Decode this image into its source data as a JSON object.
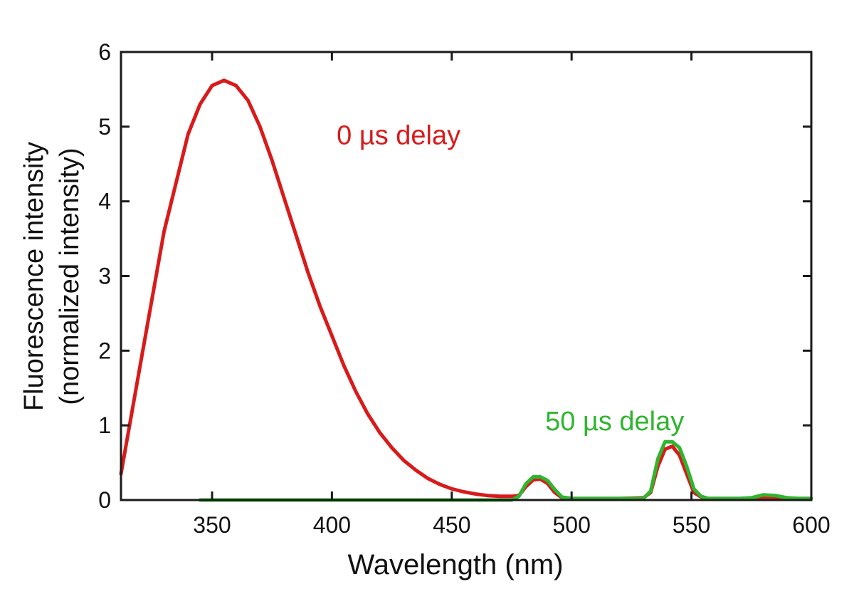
{
  "chart_data": {
    "type": "line",
    "title": "",
    "xlabel": "Wavelength (nm)",
    "ylabel_line1": "Fluorescence intensity",
    "ylabel_line2": "(normalized intensity)",
    "xlim": [
      312,
      600
    ],
    "ylim": [
      0,
      6
    ],
    "xticks": [
      350,
      400,
      450,
      500,
      550,
      600
    ],
    "yticks": [
      0,
      1,
      2,
      3,
      4,
      5,
      6
    ],
    "grid": false,
    "annotations": [
      {
        "text": "0 µs delay",
        "series": "0 µs delay",
        "x": 402,
        "y": 4.9
      },
      {
        "text": "50 µs delay",
        "series": "50 µs delay",
        "x": 489,
        "y": 1.07
      }
    ],
    "series": [
      {
        "name": "0 µs delay",
        "color": "#d91a1a",
        "x": [
          312,
          320,
          330,
          340,
          345,
          350,
          355,
          360,
          365,
          370,
          375,
          380,
          385,
          390,
          395,
          400,
          405,
          410,
          415,
          420,
          425,
          430,
          435,
          440,
          445,
          450,
          455,
          460,
          465,
          470,
          475,
          478,
          481,
          484,
          487,
          490,
          493,
          496,
          500,
          510,
          520,
          530,
          533,
          536,
          539,
          542,
          545,
          548,
          551,
          554,
          557,
          560,
          570,
          580,
          590,
          600
        ],
        "y": [
          0.35,
          1.8,
          3.6,
          4.9,
          5.3,
          5.55,
          5.62,
          5.55,
          5.35,
          5.0,
          4.55,
          4.05,
          3.55,
          3.05,
          2.6,
          2.2,
          1.8,
          1.45,
          1.15,
          0.9,
          0.7,
          0.53,
          0.4,
          0.29,
          0.21,
          0.15,
          0.11,
          0.08,
          0.06,
          0.05,
          0.05,
          0.06,
          0.18,
          0.27,
          0.28,
          0.22,
          0.1,
          0.03,
          0.02,
          0.02,
          0.02,
          0.03,
          0.1,
          0.45,
          0.68,
          0.72,
          0.6,
          0.35,
          0.1,
          0.04,
          0.02,
          0.02,
          0.02,
          0.03,
          0.02,
          0.02
        ]
      },
      {
        "name": "50 µs delay",
        "color": "#2fb52f",
        "x": [
          345,
          380,
          400,
          450,
          475,
          478,
          481,
          484,
          487,
          490,
          493,
          496,
          500,
          510,
          520,
          530,
          533,
          536,
          539,
          542,
          545,
          548,
          551,
          554,
          557,
          560,
          570,
          575,
          580,
          585,
          590,
          595,
          600
        ],
        "y": [
          0.0,
          0.0,
          0.0,
          0.0,
          0.0,
          0.05,
          0.22,
          0.31,
          0.31,
          0.26,
          0.14,
          0.04,
          0.02,
          0.02,
          0.02,
          0.02,
          0.12,
          0.55,
          0.78,
          0.78,
          0.7,
          0.45,
          0.15,
          0.05,
          0.02,
          0.02,
          0.02,
          0.03,
          0.07,
          0.06,
          0.03,
          0.02,
          0.02
        ]
      }
    ]
  }
}
